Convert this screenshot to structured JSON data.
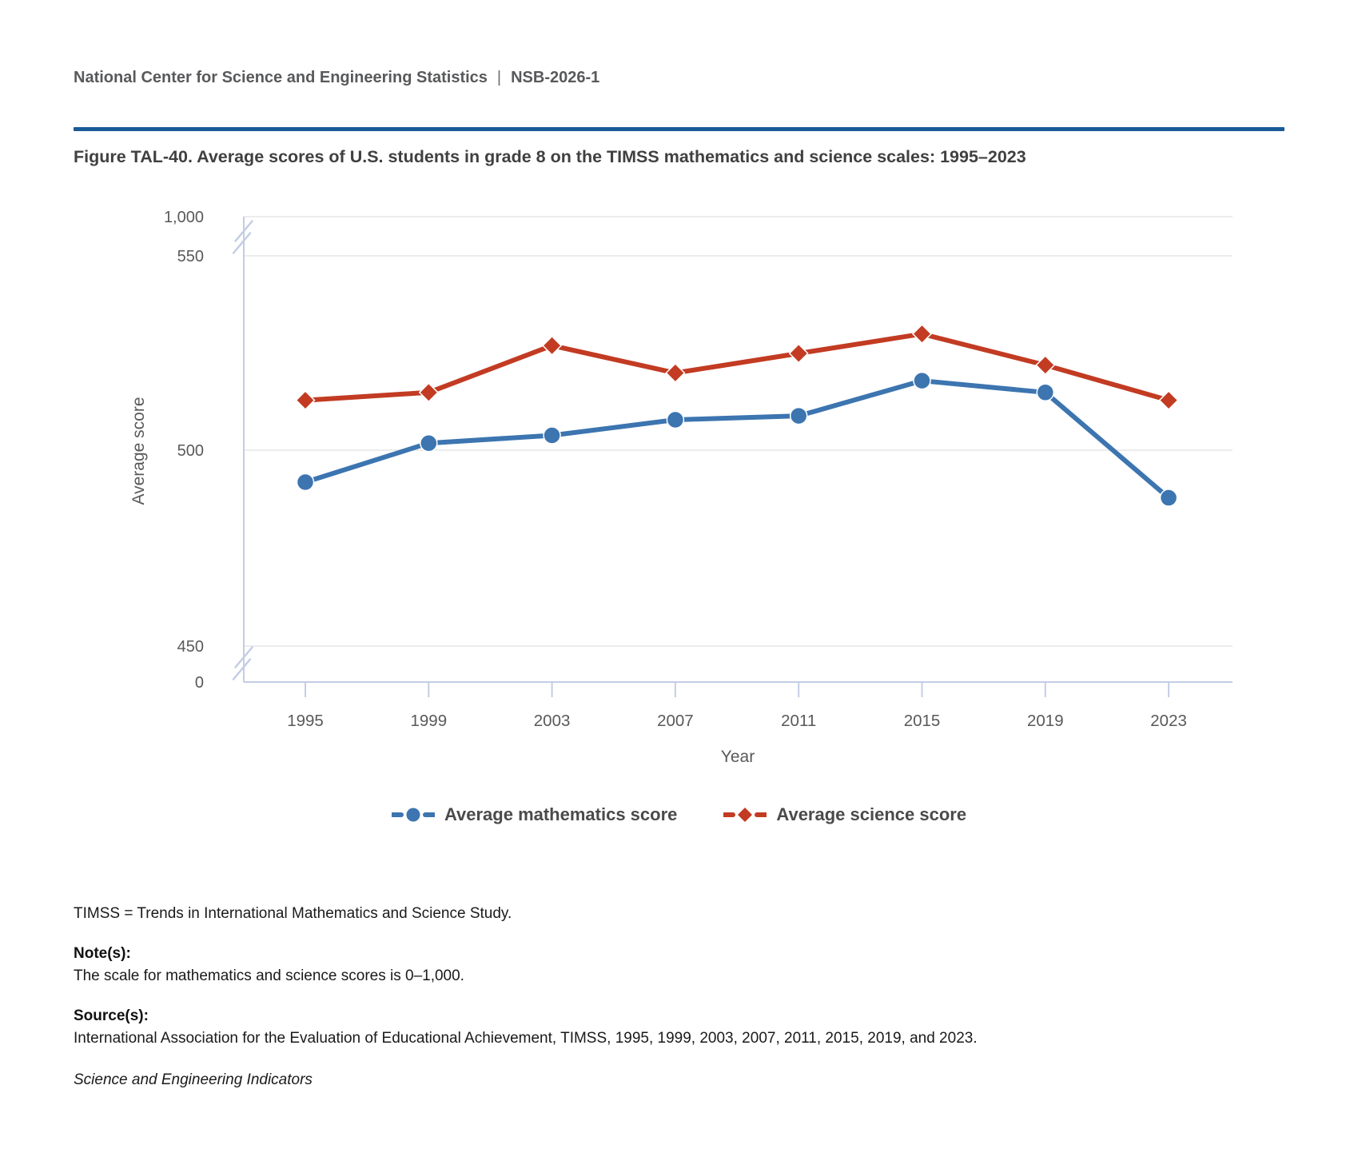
{
  "header": {
    "org": "National Center for Science and Engineering Statistics",
    "separator": "|",
    "report_id": "NSB-2026-1"
  },
  "figure": {
    "title": "Figure TAL-40. Average scores of U.S. students in grade 8 on the TIMSS mathematics and science scales: 1995–2023"
  },
  "chart_data": {
    "type": "line",
    "x": [
      "1995",
      "1999",
      "2003",
      "2007",
      "2011",
      "2015",
      "2019",
      "2023"
    ],
    "series": [
      {
        "id": "math",
        "name": "Average mathematics score",
        "marker": "circle",
        "color": "#3c75b0",
        "values": [
          492,
          502,
          504,
          508,
          509,
          518,
          515,
          488
        ]
      },
      {
        "id": "science",
        "name": "Average science score",
        "marker": "diamond",
        "color": "#c23b22",
        "values": [
          513,
          515,
          527,
          520,
          525,
          530,
          522,
          513
        ]
      }
    ],
    "xlabel": "Year",
    "ylabel": "Average score",
    "y_ticks": [
      "1,000",
      "550",
      "500",
      "450",
      "0"
    ],
    "y_axis_break": true,
    "ylim_visible": [
      450,
      550
    ],
    "full_scale": [
      0,
      1000
    ],
    "grid": "horizontal",
    "legend_position": "bottom"
  },
  "footer": {
    "abbreviation": "TIMSS = Trends in International Mathematics and Science Study.",
    "notes_label": "Note(s):",
    "notes": "The scale for mathematics and science scores is 0–1,000.",
    "source_label": "Source(s):",
    "source": "International Association for the Evaluation of Educational Achievement, TIMSS, 1995, 1999, 2003, 2007, 2011, 2015, 2019, and 2023.",
    "publication": "Science and Engineering Indicators"
  },
  "colors": {
    "accent_rule": "#1a5a96",
    "axis": "#c3cde4",
    "gridline": "#e6e6e6",
    "tick_text": "#595959",
    "title_text": "#404040",
    "header_text": "#58595b",
    "math_blue": "#3c75b0",
    "science_red": "#c23b22"
  }
}
